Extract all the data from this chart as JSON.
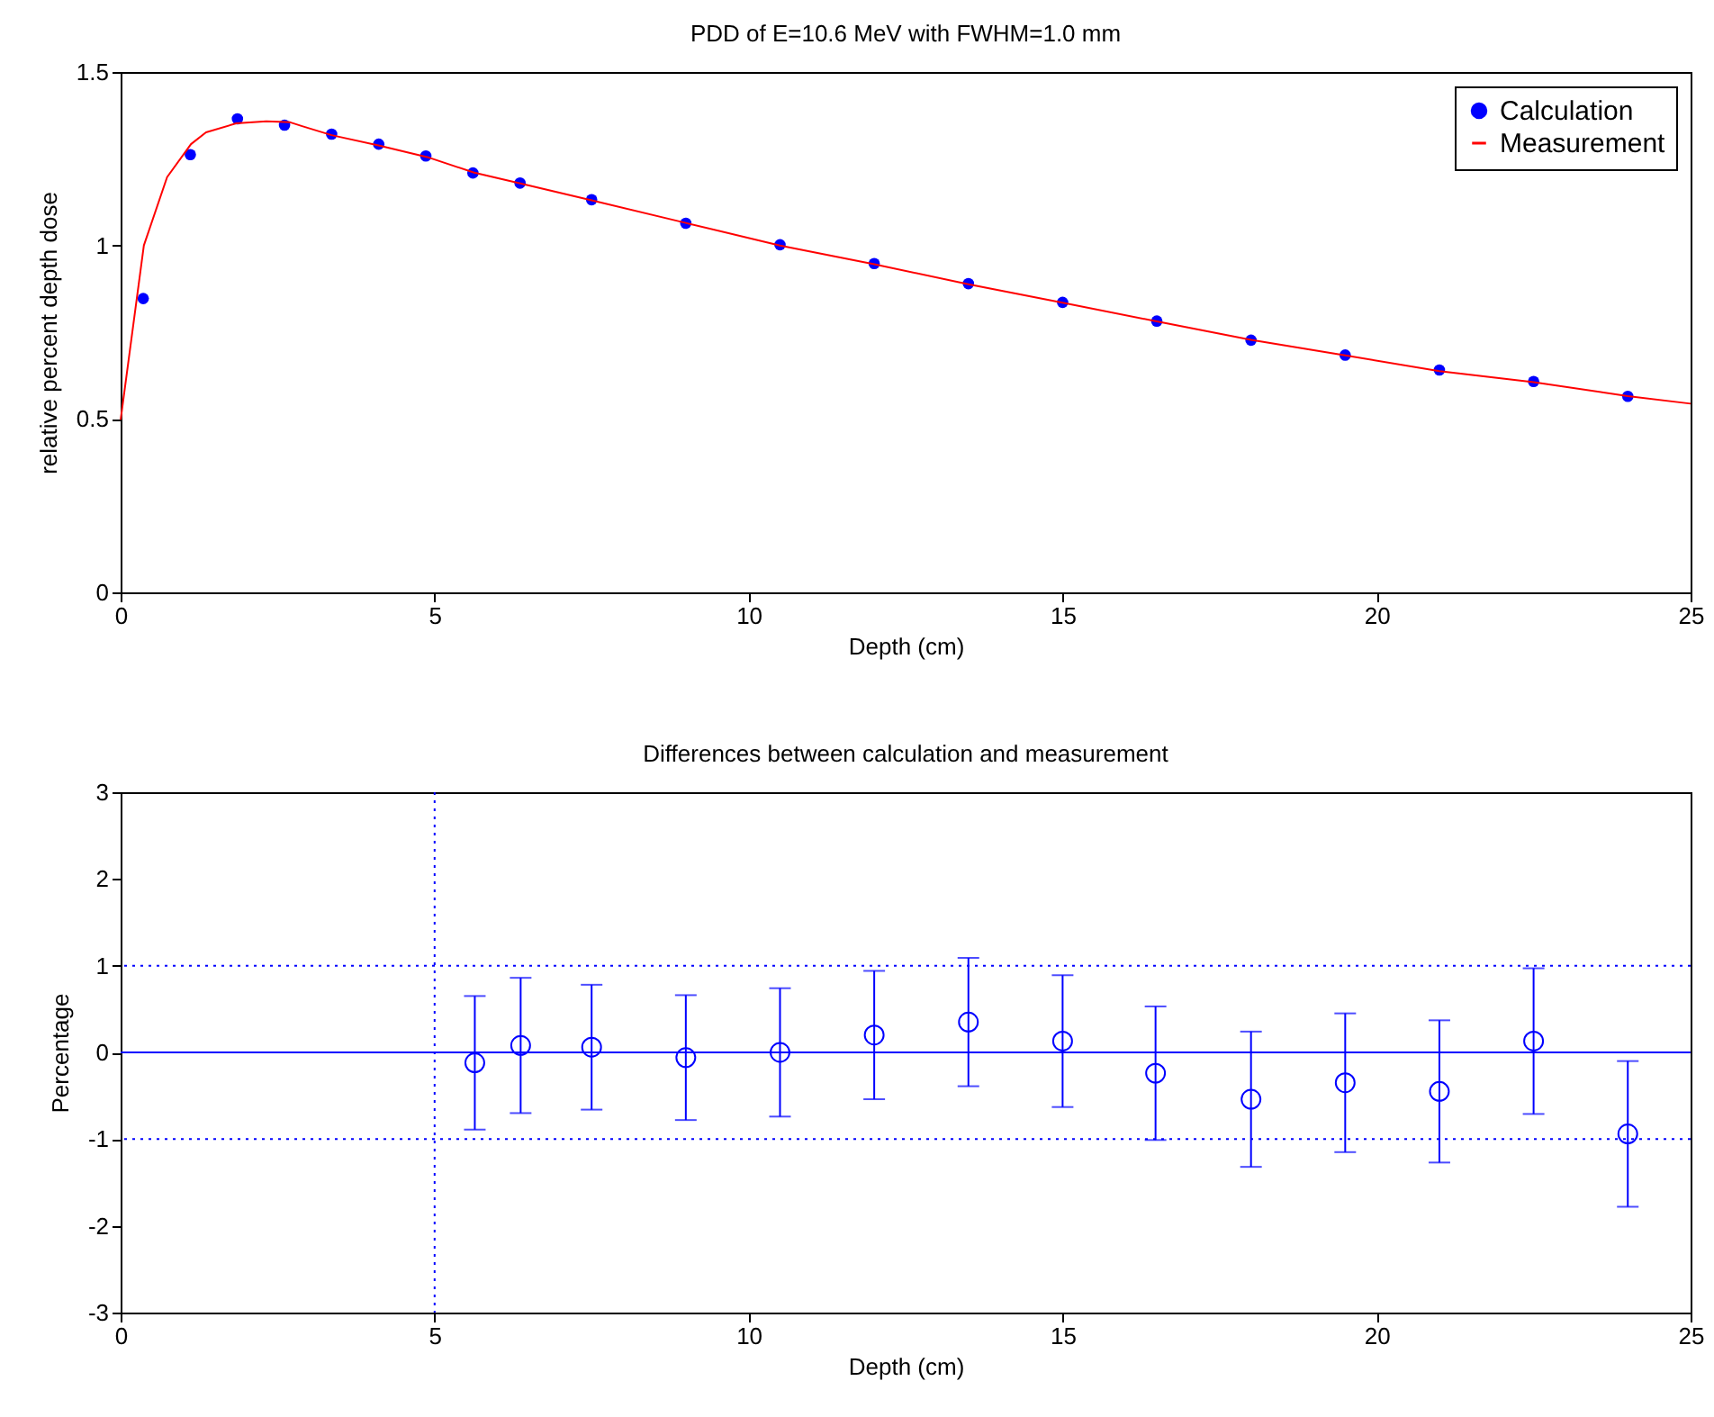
{
  "chart_data": [
    {
      "type": "scatter",
      "title": "PDD of E=10.6 MeV with FWHM=1.0 mm",
      "xlabel": "Depth (cm)",
      "ylabel": "relative percent depth dose",
      "xlim": [
        0,
        25
      ],
      "ylim": [
        0,
        1.5
      ],
      "xticks": [
        0,
        5,
        10,
        15,
        20,
        25
      ],
      "yticks": [
        0,
        0.5,
        1,
        1.5
      ],
      "grid": false,
      "legend": "top right",
      "marker": "circle",
      "series": [
        {
          "name": "Calculation",
          "color": "#0000ff",
          "x": [
            0.36,
            1.11,
            1.86,
            2.61,
            3.36,
            4.11,
            4.86,
            5.61,
            6.36,
            7.5,
            9,
            10.5,
            12,
            13.5,
            15,
            16.5,
            18,
            19.5,
            21,
            22.5,
            24
          ],
          "values": [
            0.847,
            1.262,
            1.365,
            1.347,
            1.321,
            1.292,
            1.258,
            1.209,
            1.18,
            1.132,
            1.064,
            1.002,
            0.948,
            0.89,
            0.836,
            0.782,
            0.727,
            0.684,
            0.641,
            0.608,
            0.565
          ]
        },
        {
          "name": "Measurement",
          "type": "line",
          "color": "#ff0000",
          "line_style": "solid",
          "marker": "none",
          "x": [
            0,
            0.37,
            0.74,
            1.12,
            1.36,
            1.84,
            2.32,
            2.7,
            2.89,
            3.36,
            4.12,
            4.88,
            5.63,
            6.38,
            7.5,
            9,
            10.5,
            12,
            13.5,
            15,
            16.5,
            18,
            19.5,
            21,
            22.5,
            24,
            25
          ],
          "values": [
            0.497,
            1.0,
            1.197,
            1.292,
            1.326,
            1.352,
            1.358,
            1.355,
            1.344,
            1.318,
            1.288,
            1.255,
            1.21,
            1.178,
            1.13,
            1.065,
            1.0,
            0.946,
            0.888,
            0.835,
            0.781,
            0.728,
            0.683,
            0.638,
            0.606,
            0.566,
            0.544
          ]
        }
      ]
    },
    {
      "type": "scatter",
      "title": "Differences between calculation and measurement",
      "xlabel": "Depth (cm)",
      "ylabel": "Percentage",
      "xlim": [
        0,
        25
      ],
      "ylim": [
        -3,
        3
      ],
      "xticks": [
        0,
        5,
        10,
        15,
        20,
        25
      ],
      "yticks": [
        -3,
        -2,
        -1,
        0,
        1,
        2,
        3
      ],
      "grid": false,
      "legend": false,
      "marker": "circle",
      "series": [
        {
          "color": "#0000ff",
          "x": [
            5.64,
            6.37,
            7.5,
            9,
            10.5,
            12,
            13.5,
            15,
            16.48,
            18,
            19.5,
            21,
            22.5,
            24
          ],
          "values": [
            -0.12,
            0.08,
            0.06,
            -0.06,
            0,
            0.2,
            0.35,
            0.13,
            -0.24,
            -0.54,
            -0.35,
            -0.45,
            0.13,
            -0.94
          ],
          "errors": [
            0.77,
            0.78,
            0.72,
            0.72,
            0.74,
            0.74,
            0.74,
            0.76,
            0.77,
            0.78,
            0.8,
            0.82,
            0.84,
            0.84
          ]
        }
      ],
      "ref_lines": [
        {
          "axis": "y",
          "value": 0,
          "color": "#0000ff",
          "line_style": "solid"
        },
        {
          "axis": "y",
          "value": 1,
          "color": "#0000ff",
          "line_style": "dotted"
        },
        {
          "axis": "y",
          "value": -1,
          "color": "#0000ff",
          "line_style": "dotted"
        },
        {
          "axis": "x",
          "value": 5,
          "color": "#0000ff",
          "line_style": "dotted"
        }
      ]
    }
  ]
}
